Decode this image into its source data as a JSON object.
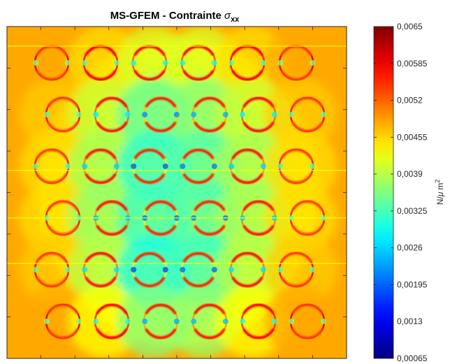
{
  "chart_data": {
    "type": "heatmap",
    "title": {
      "prefix": "MS-GFEM - Contrainte ",
      "symbol": "σ",
      "subscript": "xx"
    },
    "xlabel": "",
    "ylabel": "",
    "grid": false,
    "colormap": "jet",
    "colorbar": {
      "position": "right",
      "label": {
        "prefix": "N/",
        "symbol": "μ",
        "unit": "m",
        "exponent": "2"
      },
      "range": [
        0.00065,
        0.0065
      ],
      "ticks": [
        0.00065,
        0.0013,
        0.00195,
        0.0026,
        0.00325,
        0.0039,
        0.00455,
        0.0052,
        0.00585,
        0.0065
      ],
      "tick_labels": [
        "0,00065",
        "0,0013",
        "0,00195",
        "0,0026",
        "0,00325",
        "0,0039",
        "0,00455",
        "0,0052",
        "0,00585",
        "0,0065"
      ]
    },
    "background_value": 0.0048,
    "inclusions_grid": {
      "columns": 6,
      "rows": 6,
      "values": [
        [
          0.0048,
          0.0045,
          0.0041,
          0.0041,
          0.0045,
          0.0048
        ],
        [
          0.0046,
          0.004,
          0.0034,
          0.0036,
          0.004,
          0.0046
        ],
        [
          0.0045,
          0.0038,
          0.0031,
          0.0033,
          0.0038,
          0.0045
        ],
        [
          0.0045,
          0.0037,
          0.0032,
          0.0033,
          0.0038,
          0.0045
        ],
        [
          0.0046,
          0.0039,
          0.003,
          0.0032,
          0.0039,
          0.0046
        ],
        [
          0.0048,
          0.0043,
          0.0036,
          0.0037,
          0.0043,
          0.0048
        ]
      ]
    }
  }
}
